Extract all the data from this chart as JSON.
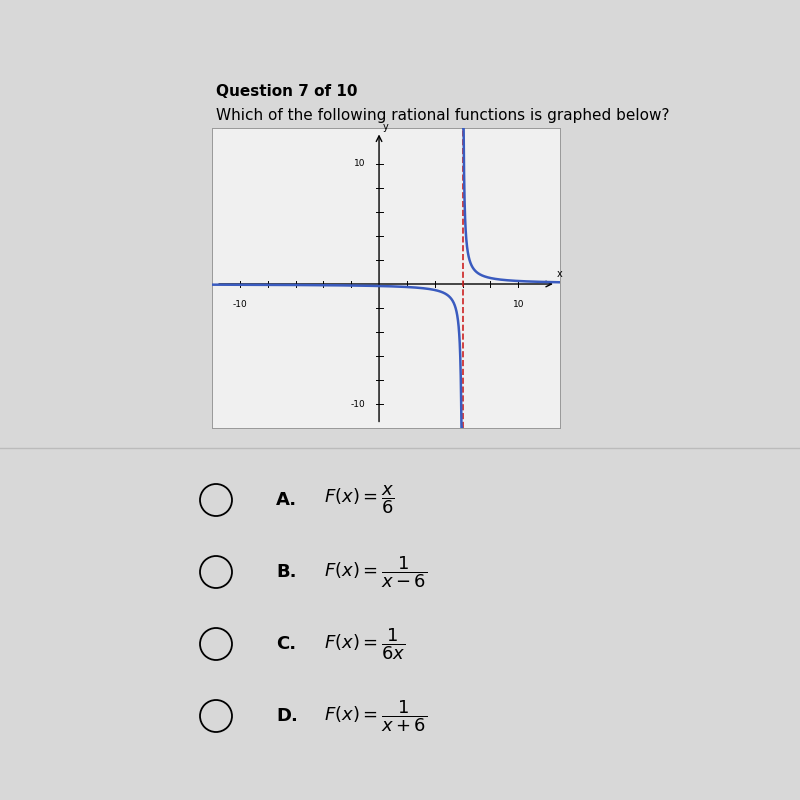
{
  "title": "Question 7 of 10",
  "question": "Which of the following rational functions is graphed below?",
  "xlim": [
    -12,
    13
  ],
  "ylim": [
    -12,
    13
  ],
  "x_ticks": [
    -10,
    10
  ],
  "y_ticks": [
    -10,
    10
  ],
  "asymptote_x": 6,
  "curve_color": "#3a5bbf",
  "asymptote_color": "#cc2222",
  "background_color": "#d8d8d8",
  "plot_bg_color": "#f0f0f0",
  "choices": [
    {
      "label": "A.",
      "expr": "F(x) = \\dfrac{x}{6}"
    },
    {
      "label": "B.",
      "expr": "F(x) = \\dfrac{1}{x-6}"
    },
    {
      "label": "C.",
      "expr": "F(x) = \\dfrac{1}{6x}"
    },
    {
      "label": "D.",
      "expr": "F(x) = \\dfrac{1}{x+6}"
    }
  ],
  "title_fontsize": 11,
  "question_fontsize": 11,
  "choices_fontsize": 13
}
